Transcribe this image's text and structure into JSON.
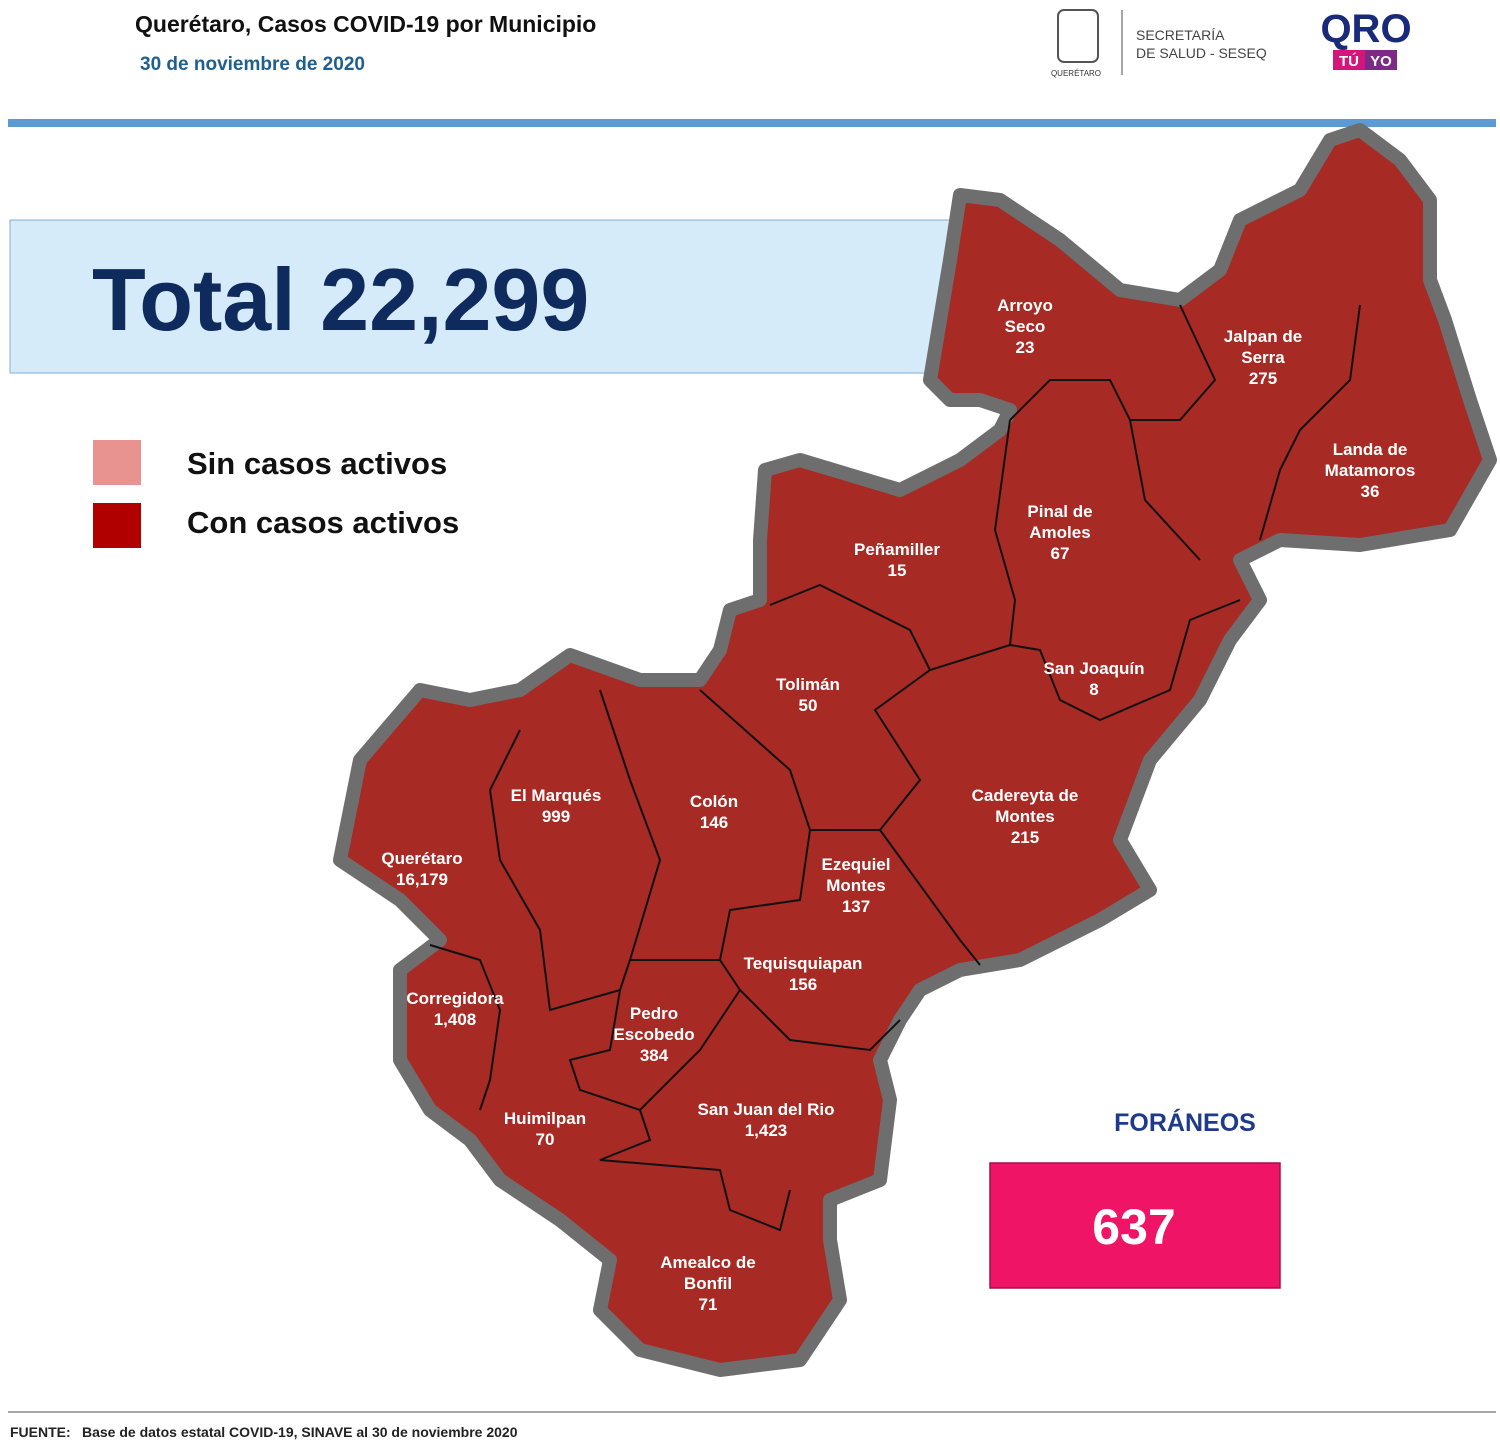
{
  "header": {
    "title": "Querétaro, Casos COVID-19 por Municipio",
    "date": "30 de noviembre de 2020",
    "logo_state": "QUERÉTARO",
    "logo_dept": [
      "SECRETARÍA",
      "DE SALUD - SESEQ"
    ],
    "logo_qro": "QRO",
    "logo_tu": "TÚ",
    "logo_yo": "YO"
  },
  "total": {
    "label": "Total",
    "value": "22,299"
  },
  "legend": [
    {
      "label": "Sin casos activos",
      "color": "#e8938f"
    },
    {
      "label": "Con casos activos",
      "color": "#b00000"
    }
  ],
  "municipalities": [
    {
      "name": [
        "Arroyo",
        "Seco"
      ],
      "cases": "23"
    },
    {
      "name": [
        "Jalpan de",
        "Serra"
      ],
      "cases": "275"
    },
    {
      "name": [
        "Landa de",
        "Matamoros"
      ],
      "cases": "36"
    },
    {
      "name": [
        "Pinal de",
        "Amoles"
      ],
      "cases": "67"
    },
    {
      "name": [
        "Peñamiller"
      ],
      "cases": "15"
    },
    {
      "name": [
        "San Joaquín"
      ],
      "cases": "8"
    },
    {
      "name": [
        "Tolimán"
      ],
      "cases": "50"
    },
    {
      "name": [
        "Cadereyta de",
        "Montes"
      ],
      "cases": "215"
    },
    {
      "name": [
        "El  Marqués"
      ],
      "cases": "999"
    },
    {
      "name": [
        "Colón"
      ],
      "cases": "146"
    },
    {
      "name": [
        "Querétaro"
      ],
      "cases": "16,179"
    },
    {
      "name": [
        "Ezequiel",
        "Montes"
      ],
      "cases": "137"
    },
    {
      "name": [
        "Tequisquiapan"
      ],
      "cases": "156"
    },
    {
      "name": [
        "Corregidora"
      ],
      "cases": "1,408"
    },
    {
      "name": [
        "Pedro",
        "Escobedo"
      ],
      "cases": "384"
    },
    {
      "name": [
        "Huimilpan"
      ],
      "cases": "70"
    },
    {
      "name": [
        "San Juan del Rio"
      ],
      "cases": "1,423"
    },
    {
      "name": [
        "Amealco de",
        "Bonfil"
      ],
      "cases": "71"
    }
  ],
  "foraneos": {
    "label": "FORÁNEOS",
    "value": "637"
  },
  "footer": {
    "label": "FUENTE:",
    "text": "Base de datos estatal COVID-19, SINAVE al 30 de noviembre 2020"
  }
}
